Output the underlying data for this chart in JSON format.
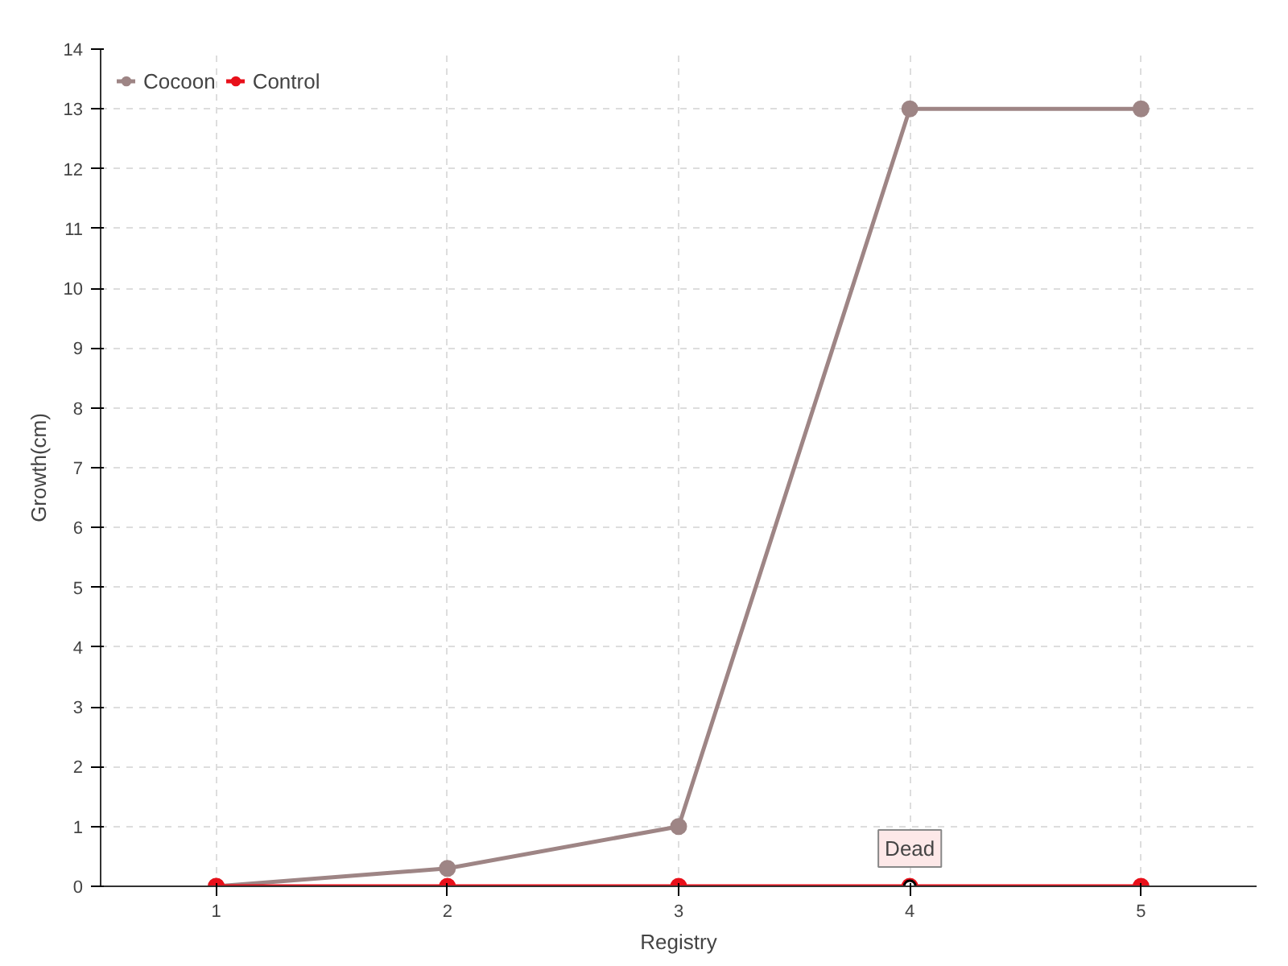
{
  "chart_data": {
    "type": "line",
    "xlabel": "Registry",
    "ylabel": "Growth(cm)",
    "x": [
      1,
      2,
      3,
      4,
      5
    ],
    "xlim": [
      0.5,
      5.5
    ],
    "xticks": [
      1,
      2,
      3,
      4,
      5
    ],
    "ylim": [
      0,
      14
    ],
    "yticks": [
      0,
      1,
      2,
      3,
      4,
      5,
      6,
      7,
      8,
      9,
      10,
      11,
      12,
      13,
      14
    ],
    "series": [
      {
        "name": "Cocoon",
        "color": "#9e8585",
        "values": [
          0,
          0.3,
          1,
          13,
          13
        ]
      },
      {
        "name": "Control",
        "color": "#e8101a",
        "values": [
          0,
          0,
          0,
          0,
          0
        ]
      }
    ],
    "annotations": [
      {
        "text": "Dead",
        "x": 4,
        "y": 0
      }
    ],
    "grid": true,
    "legend": "top left",
    "marker": "circle",
    "line_style": "solid"
  }
}
